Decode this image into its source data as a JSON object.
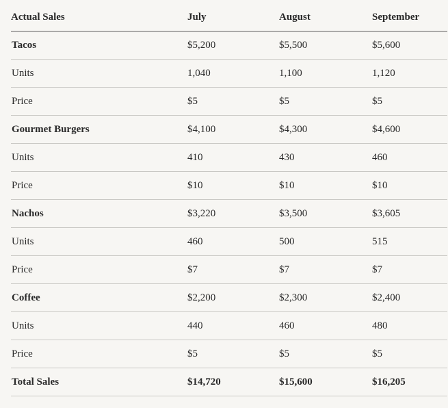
{
  "table": {
    "headers": [
      "Actual Sales",
      "July",
      "August",
      "September"
    ],
    "rows": [
      {
        "type": "group",
        "label": "Tacos",
        "values": [
          "$5,200",
          "$5,500",
          "$5,600"
        ]
      },
      {
        "type": "detail",
        "label": "Units",
        "values": [
          "1,040",
          "1,100",
          "1,120"
        ]
      },
      {
        "type": "detail",
        "label": "Price",
        "values": [
          "$5",
          "$5",
          "$5"
        ]
      },
      {
        "type": "group",
        "label": "Gourmet Burgers",
        "values": [
          "$4,100",
          "$4,300",
          "$4,600"
        ]
      },
      {
        "type": "detail",
        "label": "Units",
        "values": [
          "410",
          "430",
          "460"
        ]
      },
      {
        "type": "detail",
        "label": "Price",
        "values": [
          "$10",
          "$10",
          "$10"
        ]
      },
      {
        "type": "group",
        "label": "Nachos",
        "values": [
          "$3,220",
          "$3,500",
          "$3,605"
        ]
      },
      {
        "type": "detail",
        "label": "Units",
        "values": [
          "460",
          "500",
          "515"
        ]
      },
      {
        "type": "detail",
        "label": "Price",
        "values": [
          "$7",
          "$7",
          "$7"
        ]
      },
      {
        "type": "group",
        "label": "Coffee",
        "values": [
          "$2,200",
          "$2,300",
          "$2,400"
        ]
      },
      {
        "type": "detail",
        "label": "Units",
        "values": [
          "440",
          "460",
          "480"
        ]
      },
      {
        "type": "detail",
        "label": "Price",
        "values": [
          "$5",
          "$5",
          "$5"
        ]
      },
      {
        "type": "total",
        "label": "Total Sales",
        "values": [
          "$14,720",
          "$15,600",
          "$16,205"
        ]
      }
    ]
  }
}
